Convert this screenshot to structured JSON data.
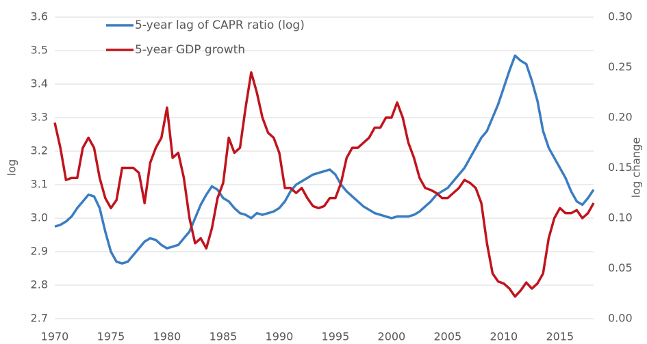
{
  "chart_data": {
    "type": "line",
    "y_label": "log",
    "y2_label": "log change",
    "x": [
      1970,
      1970.5,
      1971,
      1971.5,
      1972,
      1972.5,
      1973,
      1973.5,
      1974,
      1974.5,
      1975,
      1975.5,
      1976,
      1976.5,
      1977,
      1977.5,
      1978,
      1978.5,
      1979,
      1979.5,
      1980,
      1980.5,
      1981,
      1981.5,
      1982,
      1982.5,
      1983,
      1983.5,
      1984,
      1984.5,
      1985,
      1985.5,
      1986,
      1986.5,
      1987,
      1987.5,
      1988,
      1988.5,
      1989,
      1989.5,
      1990,
      1990.5,
      1991,
      1991.5,
      1992,
      1992.5,
      1993,
      1993.5,
      1994,
      1994.5,
      1995,
      1995.5,
      1996,
      1996.5,
      1997,
      1997.5,
      1998,
      1998.5,
      1999,
      1999.5,
      2000,
      2000.5,
      2001,
      2001.5,
      2002,
      2002.5,
      2003,
      2003.5,
      2004,
      2004.5,
      2005,
      2005.5,
      2006,
      2006.5,
      2007,
      2007.5,
      2008,
      2008.5,
      2009,
      2009.5,
      2010,
      2010.5,
      2011,
      2011.5,
      2012,
      2012.5,
      2013,
      2013.5,
      2014,
      2014.5,
      2015,
      2015.5,
      2016,
      2016.5,
      2017,
      2017.5,
      2018
    ],
    "series": [
      {
        "name": "5-year lag of CAPR ratio (log)",
        "color": "#3a7dc1",
        "values": [
          2.975,
          2.98,
          2.99,
          3.005,
          3.03,
          3.05,
          3.07,
          3.065,
          3.03,
          2.96,
          2.9,
          2.87,
          2.865,
          2.87,
          2.89,
          2.91,
          2.93,
          2.94,
          2.935,
          2.92,
          2.91,
          2.915,
          2.92,
          2.94,
          2.96,
          3.0,
          3.04,
          3.07,
          3.095,
          3.085,
          3.06,
          3.05,
          3.03,
          3.015,
          3.01,
          3.0,
          3.015,
          3.01,
          3.015,
          3.02,
          3.03,
          3.05,
          3.08,
          3.1,
          3.11,
          3.12,
          3.13,
          3.135,
          3.14,
          3.145,
          3.13,
          3.1,
          3.08,
          3.065,
          3.05,
          3.035,
          3.025,
          3.015,
          3.01,
          3.005,
          3.0,
          3.005,
          3.005,
          3.005,
          3.01,
          3.02,
          3.035,
          3.05,
          3.07,
          3.08,
          3.09,
          3.11,
          3.13,
          3.15,
          3.18,
          3.21,
          3.24,
          3.26,
          3.3,
          3.34,
          3.39,
          3.44,
          3.485,
          3.47,
          3.46,
          3.41,
          3.35,
          3.26,
          3.21,
          3.18,
          3.15,
          3.12,
          3.08,
          3.05,
          3.04,
          3.06,
          3.085
        ]
      },
      {
        "name": "5-year GDP growth",
        "color": "#c0141d",
        "axis": "y2",
        "values": [
          0.195,
          0.17,
          0.138,
          0.14,
          0.14,
          0.17,
          0.18,
          0.17,
          0.14,
          0.12,
          0.11,
          0.118,
          0.15,
          0.15,
          0.15,
          0.145,
          0.115,
          0.155,
          0.17,
          0.18,
          0.21,
          0.16,
          0.165,
          0.14,
          0.1,
          0.075,
          0.08,
          0.07,
          0.09,
          0.12,
          0.135,
          0.18,
          0.165,
          0.17,
          0.21,
          0.245,
          0.225,
          0.2,
          0.185,
          0.18,
          0.165,
          0.13,
          0.13,
          0.125,
          0.13,
          0.12,
          0.112,
          0.11,
          0.112,
          0.12,
          0.12,
          0.135,
          0.16,
          0.17,
          0.17,
          0.175,
          0.18,
          0.19,
          0.19,
          0.2,
          0.2,
          0.215,
          0.2,
          0.175,
          0.16,
          0.14,
          0.13,
          0.128,
          0.125,
          0.12,
          0.12,
          0.125,
          0.13,
          0.138,
          0.135,
          0.13,
          0.115,
          0.075,
          0.045,
          0.037,
          0.035,
          0.03,
          0.022,
          0.028,
          0.036,
          0.03,
          0.035,
          0.045,
          0.08,
          0.1,
          0.11,
          0.105,
          0.105,
          0.108,
          0.1,
          0.105,
          0.115
        ]
      }
    ],
    "xlim": [
      1970,
      2018
    ],
    "xticks": [
      1970,
      1975,
      1980,
      1985,
      1990,
      1995,
      2000,
      2005,
      2010,
      2015
    ],
    "ylim": [
      2.7,
      3.6
    ],
    "yticks": [
      2.7,
      2.8,
      2.9,
      {
        "value": 3,
        "label": "3.0"
      },
      3.1,
      3.2,
      3.3,
      3.4,
      3.5,
      3.6
    ],
    "y2lim": [
      0,
      0.3
    ],
    "y2ticks": [
      {
        "value": 0,
        "label": "0.00"
      },
      {
        "value": 0.05,
        "label": "0.05"
      },
      {
        "value": 0.1,
        "label": "0.10"
      },
      {
        "value": 0.15,
        "label": "0.15"
      },
      {
        "value": 0.2,
        "label": "0.20"
      },
      {
        "value": 0.25,
        "label": "0.25"
      },
      {
        "value": 0.3,
        "label": "0.30"
      }
    ],
    "grid": true,
    "legend": "top-left"
  }
}
